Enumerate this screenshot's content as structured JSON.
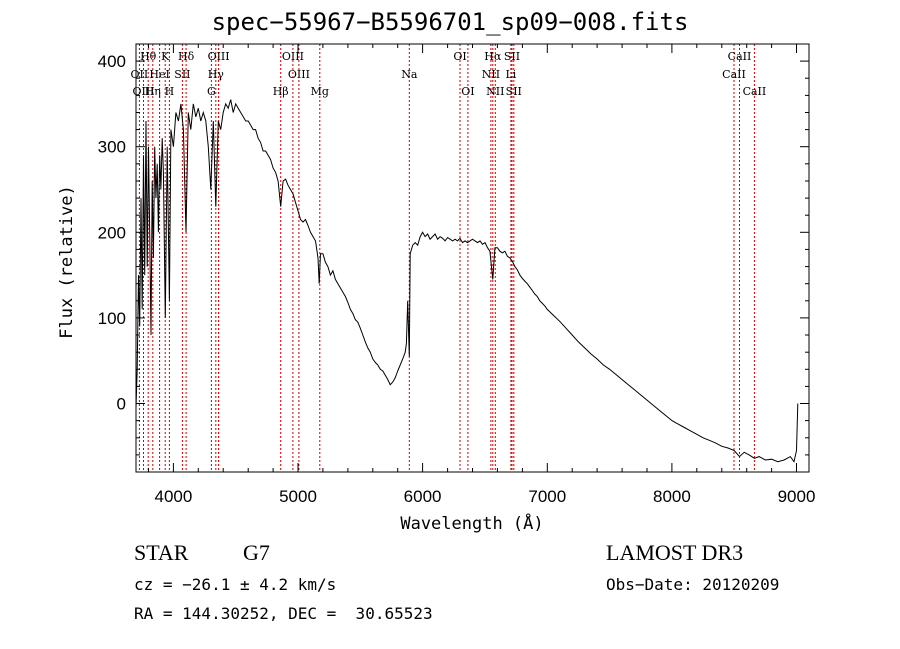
{
  "title": "spec−55967−B5596701_sp09−008.fits",
  "info": {
    "class": "STAR",
    "subclass": "G7",
    "survey": "LAMOST DR3",
    "cz": "cz = −26.1 ± 4.2 km/s",
    "obs_date": "Obs−Date: 20120209",
    "coords": "RA = 144.30252, DEC =  30.65523"
  },
  "chart_data": {
    "type": "line",
    "title": "spec−55967−B5596701_sp09−008.fits",
    "xlabel": "Wavelength (Å)",
    "ylabel": "Flux (relative)",
    "xlim": [
      3700,
      9100
    ],
    "ylim": [
      -80,
      420
    ],
    "xticks": [
      4000,
      5000,
      6000,
      7000,
      8000,
      9000
    ],
    "yticks": [
      0,
      100,
      200,
      300,
      400
    ],
    "line_color": "#000000",
    "marker_color": "#cc0000",
    "spectrum": [
      [
        3700,
        -5
      ],
      [
        3710,
        40
      ],
      [
        3720,
        150
      ],
      [
        3730,
        90
      ],
      [
        3740,
        240
      ],
      [
        3750,
        110
      ],
      [
        3760,
        290
      ],
      [
        3770,
        150
      ],
      [
        3780,
        330
      ],
      [
        3790,
        160
      ],
      [
        3800,
        300
      ],
      [
        3810,
        200
      ],
      [
        3820,
        80
      ],
      [
        3830,
        260
      ],
      [
        3840,
        170
      ],
      [
        3850,
        300
      ],
      [
        3860,
        240
      ],
      [
        3870,
        280
      ],
      [
        3880,
        200
      ],
      [
        3890,
        290
      ],
      [
        3900,
        250
      ],
      [
        3910,
        310
      ],
      [
        3920,
        270
      ],
      [
        3935,
        100
      ],
      [
        3950,
        300
      ],
      [
        3968,
        120
      ],
      [
        3980,
        320
      ],
      [
        4000,
        300
      ],
      [
        4020,
        340
      ],
      [
        4040,
        330
      ],
      [
        4060,
        350
      ],
      [
        4080,
        320
      ],
      [
        4101,
        200
      ],
      [
        4120,
        340
      ],
      [
        4140,
        320
      ],
      [
        4160,
        350
      ],
      [
        4180,
        335
      ],
      [
        4200,
        345
      ],
      [
        4220,
        330
      ],
      [
        4240,
        340
      ],
      [
        4260,
        330
      ],
      [
        4280,
        300
      ],
      [
        4300,
        250
      ],
      [
        4320,
        330
      ],
      [
        4340,
        230
      ],
      [
        4360,
        330
      ],
      [
        4380,
        320
      ],
      [
        4400,
        340
      ],
      [
        4420,
        350
      ],
      [
        4440,
        345
      ],
      [
        4460,
        355
      ],
      [
        4480,
        340
      ],
      [
        4500,
        350
      ],
      [
        4520,
        345
      ],
      [
        4540,
        340
      ],
      [
        4560,
        335
      ],
      [
        4580,
        330
      ],
      [
        4600,
        330
      ],
      [
        4620,
        325
      ],
      [
        4640,
        320
      ],
      [
        4660,
        320
      ],
      [
        4680,
        310
      ],
      [
        4700,
        305
      ],
      [
        4720,
        295
      ],
      [
        4740,
        295
      ],
      [
        4760,
        290
      ],
      [
        4780,
        285
      ],
      [
        4800,
        275
      ],
      [
        4820,
        270
      ],
      [
        4840,
        260
      ],
      [
        4861,
        230
      ],
      [
        4880,
        260
      ],
      [
        4900,
        262
      ],
      [
        4920,
        255
      ],
      [
        4940,
        250
      ],
      [
        4960,
        245
      ],
      [
        4980,
        235
      ],
      [
        5000,
        225
      ],
      [
        5020,
        215
      ],
      [
        5040,
        212
      ],
      [
        5060,
        215
      ],
      [
        5080,
        208
      ],
      [
        5100,
        200
      ],
      [
        5120,
        195
      ],
      [
        5140,
        190
      ],
      [
        5160,
        170
      ],
      [
        5170,
        140
      ],
      [
        5180,
        175
      ],
      [
        5200,
        175
      ],
      [
        5220,
        165
      ],
      [
        5240,
        160
      ],
      [
        5260,
        150
      ],
      [
        5280,
        155
      ],
      [
        5300,
        145
      ],
      [
        5320,
        140
      ],
      [
        5340,
        135
      ],
      [
        5360,
        130
      ],
      [
        5380,
        125
      ],
      [
        5400,
        118
      ],
      [
        5420,
        110
      ],
      [
        5440,
        105
      ],
      [
        5460,
        98
      ],
      [
        5480,
        95
      ],
      [
        5500,
        88
      ],
      [
        5520,
        80
      ],
      [
        5540,
        72
      ],
      [
        5560,
        65
      ],
      [
        5580,
        60
      ],
      [
        5600,
        52
      ],
      [
        5620,
        48
      ],
      [
        5640,
        45
      ],
      [
        5660,
        40
      ],
      [
        5680,
        38
      ],
      [
        5700,
        33
      ],
      [
        5720,
        28
      ],
      [
        5740,
        22
      ],
      [
        5760,
        25
      ],
      [
        5780,
        30
      ],
      [
        5800,
        38
      ],
      [
        5820,
        45
      ],
      [
        5840,
        52
      ],
      [
        5860,
        60
      ],
      [
        5870,
        70
      ],
      [
        5880,
        120
      ],
      [
        5893,
        55
      ],
      [
        5900,
        175
      ],
      [
        5920,
        185
      ],
      [
        5940,
        188
      ],
      [
        5960,
        185
      ],
      [
        5980,
        195
      ],
      [
        6000,
        200
      ],
      [
        6020,
        195
      ],
      [
        6040,
        198
      ],
      [
        6060,
        192
      ],
      [
        6080,
        195
      ],
      [
        6100,
        198
      ],
      [
        6120,
        192
      ],
      [
        6140,
        195
      ],
      [
        6160,
        193
      ],
      [
        6180,
        190
      ],
      [
        6200,
        194
      ],
      [
        6220,
        192
      ],
      [
        6240,
        190
      ],
      [
        6260,
        192
      ],
      [
        6280,
        190
      ],
      [
        6300,
        193
      ],
      [
        6320,
        188
      ],
      [
        6340,
        190
      ],
      [
        6360,
        188
      ],
      [
        6380,
        190
      ],
      [
        6400,
        192
      ],
      [
        6420,
        190
      ],
      [
        6440,
        188
      ],
      [
        6460,
        190
      ],
      [
        6480,
        186
      ],
      [
        6500,
        188
      ],
      [
        6520,
        182
      ],
      [
        6540,
        178
      ],
      [
        6563,
        145
      ],
      [
        6580,
        182
      ],
      [
        6600,
        182
      ],
      [
        6620,
        178
      ],
      [
        6640,
        176
      ],
      [
        6660,
        178
      ],
      [
        6680,
        172
      ],
      [
        6700,
        170
      ],
      [
        6720,
        166
      ],
      [
        6740,
        160
      ],
      [
        6760,
        156
      ],
      [
        6780,
        150
      ],
      [
        6800,
        146
      ],
      [
        6820,
        143
      ],
      [
        6840,
        140
      ],
      [
        6860,
        136
      ],
      [
        6880,
        132
      ],
      [
        6900,
        128
      ],
      [
        6920,
        125
      ],
      [
        6940,
        120
      ],
      [
        6960,
        117
      ],
      [
        6980,
        114
      ],
      [
        7000,
        110
      ],
      [
        7050,
        103
      ],
      [
        7100,
        96
      ],
      [
        7150,
        88
      ],
      [
        7200,
        80
      ],
      [
        7250,
        72
      ],
      [
        7300,
        65
      ],
      [
        7350,
        58
      ],
      [
        7400,
        52
      ],
      [
        7450,
        45
      ],
      [
        7500,
        40
      ],
      [
        7550,
        34
      ],
      [
        7600,
        28
      ],
      [
        7650,
        22
      ],
      [
        7700,
        16
      ],
      [
        7750,
        10
      ],
      [
        7800,
        4
      ],
      [
        7850,
        -2
      ],
      [
        7900,
        -8
      ],
      [
        7950,
        -14
      ],
      [
        8000,
        -20
      ],
      [
        8050,
        -24
      ],
      [
        8100,
        -28
      ],
      [
        8150,
        -32
      ],
      [
        8200,
        -36
      ],
      [
        8250,
        -40
      ],
      [
        8300,
        -43
      ],
      [
        8350,
        -46
      ],
      [
        8400,
        -50
      ],
      [
        8450,
        -52
      ],
      [
        8500,
        -55
      ],
      [
        8542,
        -62
      ],
      [
        8580,
        -57
      ],
      [
        8620,
        -60
      ],
      [
        8662,
        -64
      ],
      [
        8700,
        -62
      ],
      [
        8750,
        -66
      ],
      [
        8800,
        -65
      ],
      [
        8850,
        -68
      ],
      [
        8900,
        -66
      ],
      [
        8950,
        -62
      ],
      [
        8980,
        -68
      ],
      [
        9000,
        -55
      ],
      [
        9010,
        0
      ]
    ],
    "lines": [
      {
        "name": "Hθ",
        "wl": 3798,
        "row": 0
      },
      {
        "name": "K",
        "wl": 3934,
        "row": 0
      },
      {
        "name": "Hδ",
        "wl": 4102,
        "row": 0
      },
      {
        "name": "OIII",
        "wl": 4363,
        "row": 0
      },
      {
        "name": "OIII",
        "wl": 4959,
        "row": 0
      },
      {
        "name": "OI",
        "wl": 6300,
        "row": 0
      },
      {
        "name": "Hα",
        "wl": 6563,
        "row": 0
      },
      {
        "name": "SII",
        "wl": 6717,
        "row": 0
      },
      {
        "name": "CaII",
        "wl": 8542,
        "row": 0
      },
      {
        "name": "OII",
        "wl": 3727,
        "row": 1
      },
      {
        "name": "HeI",
        "wl": 3889,
        "row": 1
      },
      {
        "name": "SII",
        "wl": 4072,
        "row": 1
      },
      {
        "name": "Hγ",
        "wl": 4340,
        "row": 1
      },
      {
        "name": "OIII",
        "wl": 5007,
        "row": 1
      },
      {
        "name": "Na",
        "wl": 5893,
        "row": 1
      },
      {
        "name": "NII",
        "wl": 6548,
        "row": 1
      },
      {
        "name": "Li",
        "wl": 6708,
        "row": 1
      },
      {
        "name": "CaII",
        "wl": 8498,
        "row": 1
      },
      {
        "name": "OIII",
        "wl": 3760,
        "row": 2
      },
      {
        "name": "Hη",
        "wl": 3835,
        "row": 2
      },
      {
        "name": "H",
        "wl": 3968,
        "row": 2
      },
      {
        "name": "G",
        "wl": 4305,
        "row": 2
      },
      {
        "name": "Hβ",
        "wl": 4861,
        "row": 2
      },
      {
        "name": "Mg",
        "wl": 5175,
        "row": 2
      },
      {
        "name": "OI",
        "wl": 6363,
        "row": 2
      },
      {
        "name": "NII",
        "wl": 6583,
        "row": 2
      },
      {
        "name": "SII",
        "wl": 6731,
        "row": 2
      },
      {
        "name": "CaII",
        "wl": 8662,
        "row": 2
      }
    ]
  }
}
